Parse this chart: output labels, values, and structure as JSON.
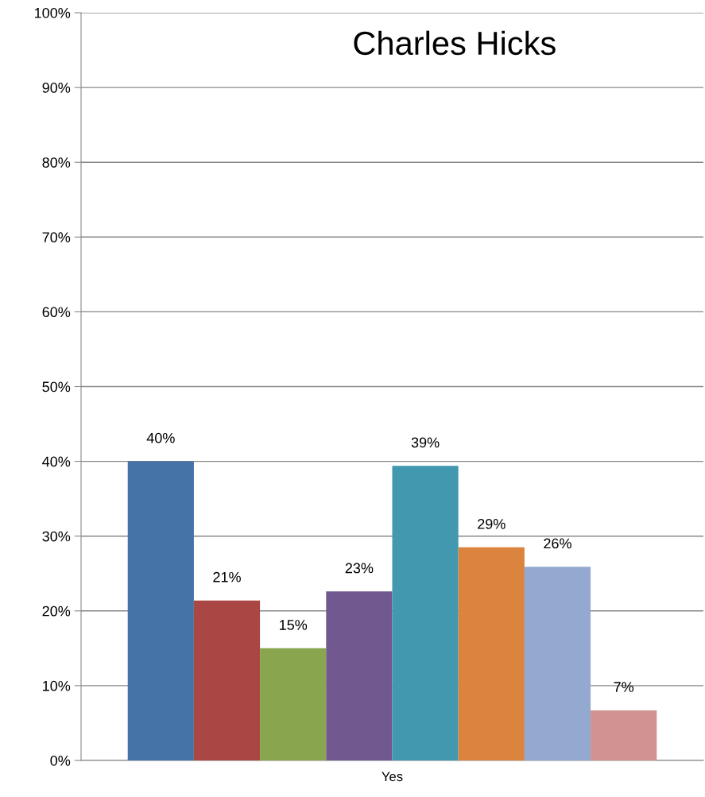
{
  "chart_data": {
    "type": "bar",
    "title": "Charles Hicks",
    "categories": [
      "Yes"
    ],
    "series": [
      {
        "color": "#4573a7",
        "values": [
          40.0
        ],
        "value_labels": [
          "40%"
        ]
      },
      {
        "color": "#aa4744",
        "values": [
          21.4
        ],
        "value_labels": [
          "21%"
        ]
      },
      {
        "color": "#89a54e",
        "values": [
          15.0
        ],
        "value_labels": [
          "15%"
        ]
      },
      {
        "color": "#71588f",
        "values": [
          22.6
        ],
        "value_labels": [
          "23%"
        ]
      },
      {
        "color": "#4198af",
        "values": [
          39.4
        ],
        "value_labels": [
          "39%"
        ]
      },
      {
        "color": "#db843d",
        "values": [
          28.5
        ],
        "value_labels": [
          "29%"
        ]
      },
      {
        "color": "#93a9cf",
        "values": [
          25.9
        ],
        "value_labels": [
          "26%"
        ]
      },
      {
        "color": "#d19392",
        "values": [
          6.7
        ],
        "value_labels": [
          "7%"
        ]
      }
    ],
    "ylim": [
      0,
      100
    ],
    "yticks": [
      {
        "value": 0,
        "label": "0%"
      },
      {
        "value": 10,
        "label": "10%"
      },
      {
        "value": 20,
        "label": "20%"
      },
      {
        "value": 30,
        "label": "30%"
      },
      {
        "value": 40,
        "label": "40%"
      },
      {
        "value": 50,
        "label": "50%"
      },
      {
        "value": 60,
        "label": "60%"
      },
      {
        "value": 70,
        "label": "70%"
      },
      {
        "value": 80,
        "label": "80%"
      },
      {
        "value": 90,
        "label": "90%"
      },
      {
        "value": 100,
        "label": "100%"
      }
    ],
    "grid": "y",
    "legend": false
  }
}
